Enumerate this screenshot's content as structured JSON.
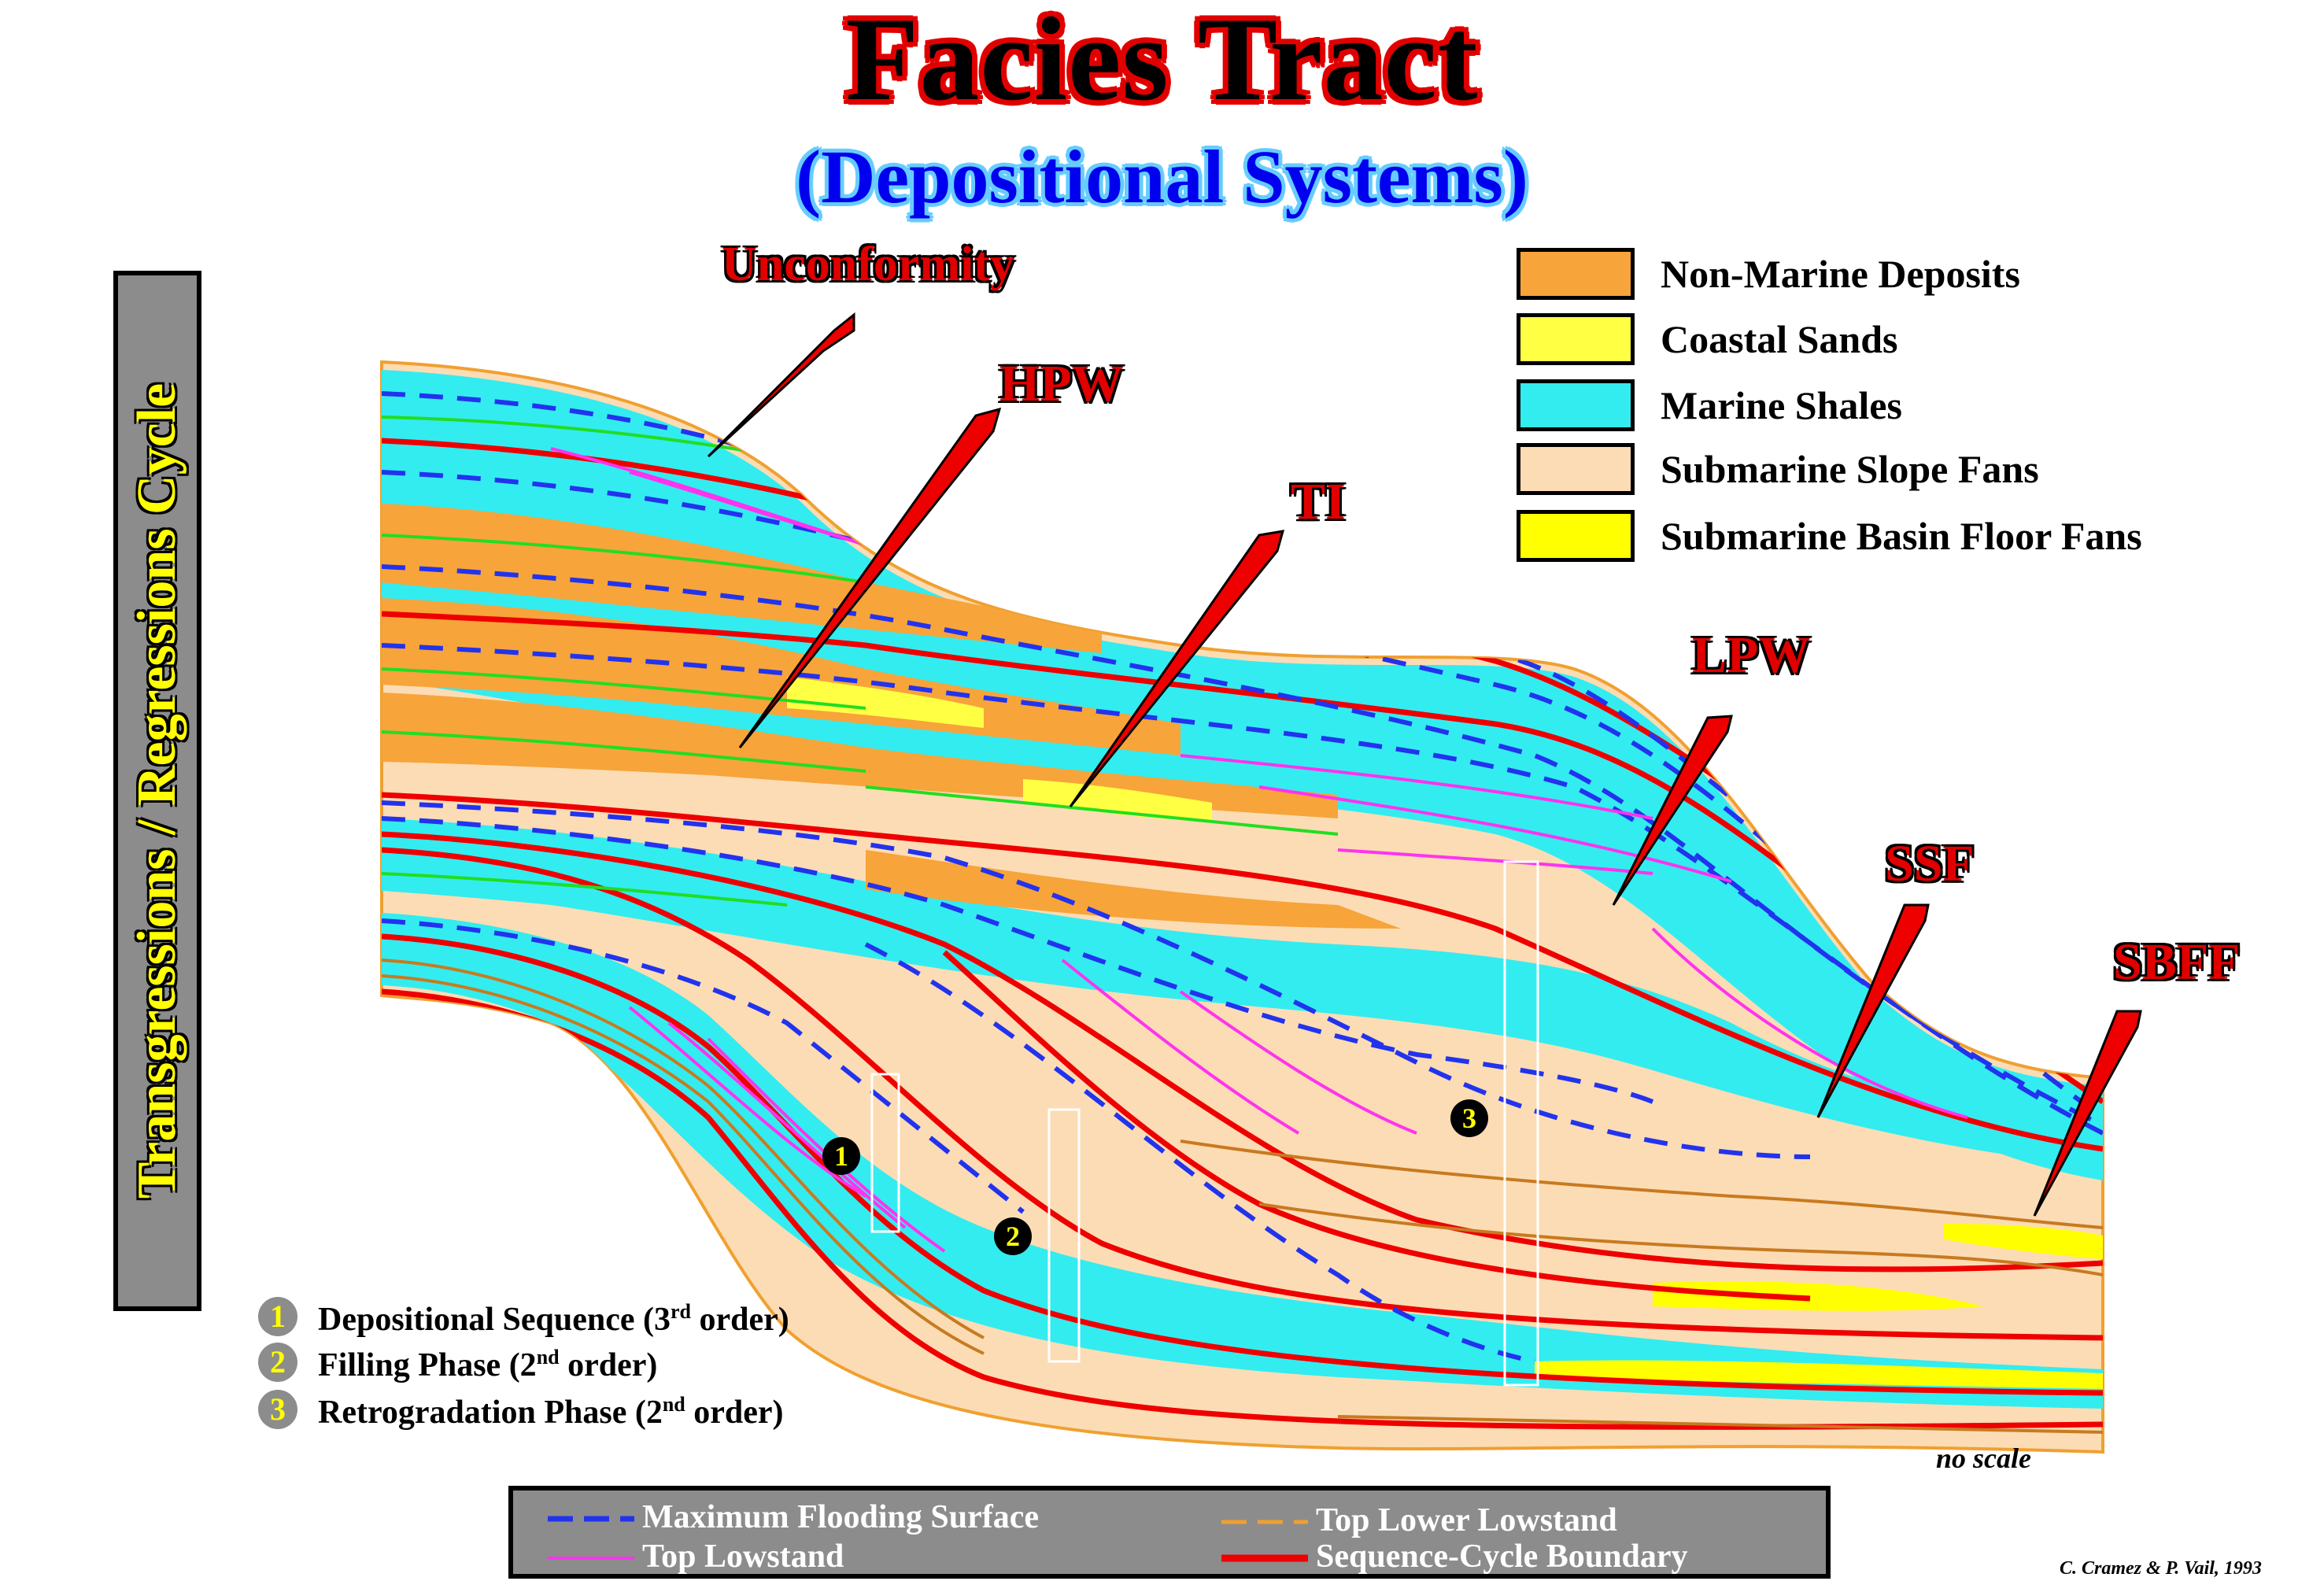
{
  "title": "Facies Tract",
  "subtitle": "(Depositional Systems)",
  "sidebar_text": "Transgressions / Regressions Cycle",
  "callouts": [
    "Unconformity",
    "HPW",
    "TI",
    "LPW",
    "SSF",
    "SBFF"
  ],
  "legend": [
    {
      "label": "Non-Marine Deposits",
      "color": "#f7a43a"
    },
    {
      "label": "Coastal Sands",
      "color": "#ffff44"
    },
    {
      "label": "Marine Shales",
      "color": "#33ecf0"
    },
    {
      "label": "Submarine Slope Fans",
      "color": "#fcdcb4"
    },
    {
      "label": "Submarine Basin Floor Fans",
      "color": "#ffff00"
    }
  ],
  "phases": [
    {
      "num": "1",
      "text": "Depositional Sequence (3",
      "sup": "rd",
      "tail": " order)"
    },
    {
      "num": "2",
      "text": "Filling Phase (2",
      "sup": "nd",
      "tail": " order)"
    },
    {
      "num": "3",
      "text": "Retrogradation Phase (2",
      "sup": "nd",
      "tail": " order)"
    }
  ],
  "markers": [
    "1",
    "2",
    "3"
  ],
  "line_legend": [
    {
      "label": "Maximum Flooding Surface",
      "color": "#2233ee",
      "style": "dashed"
    },
    {
      "label": "Top Lower Lowstand",
      "color": "#f0a030",
      "style": "dashed"
    },
    {
      "label": "Top Lowstand",
      "color": "#ff33ee",
      "style": "solid"
    },
    {
      "label": "Sequence-Cycle Boundary",
      "color": "#ee0000",
      "style": "solid"
    }
  ],
  "no_scale": "no scale",
  "credit": "C. Cramez & P. Vail, 1993"
}
